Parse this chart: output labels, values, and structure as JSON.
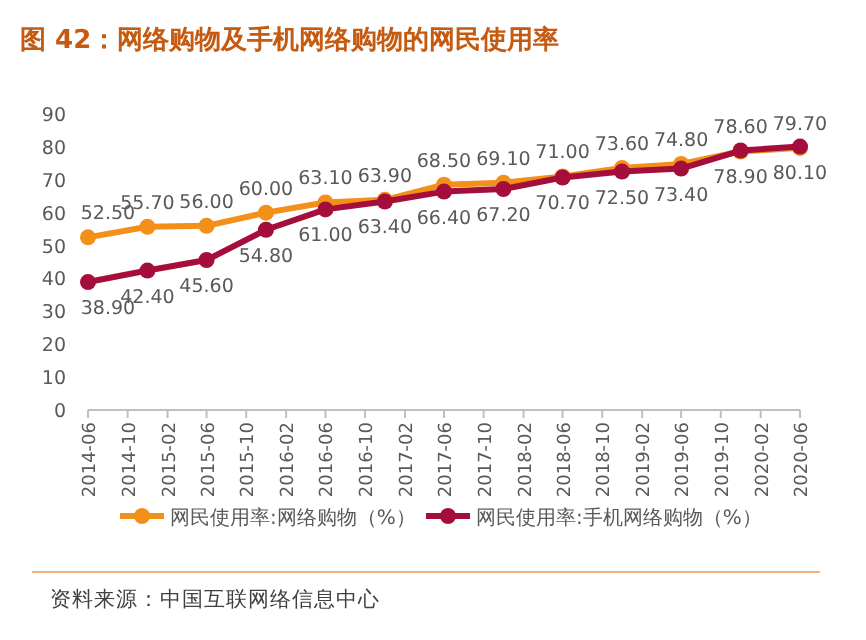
{
  "chart_data": {
    "type": "line",
    "title": "图 42：网络购物及手机网络购物的网民使用率",
    "x": [
      "2014-06",
      "2014-12",
      "2015-06",
      "2015-12",
      "2016-06",
      "2016-12",
      "2017-06",
      "2017-12",
      "2018-06",
      "2018-12",
      "2019-06",
      "2019-12",
      "2020-06"
    ],
    "series": [
      {
        "name": "网民使用率:网络购物（%）",
        "color": "#f39019",
        "values": [
          52.5,
          55.7,
          56.0,
          60.0,
          63.1,
          63.9,
          68.5,
          69.1,
          71.0,
          73.6,
          74.8,
          78.6,
          79.7
        ],
        "value_labels": [
          "52.50",
          "55.70",
          "56.00",
          "60.00",
          "63.10",
          "63.90",
          "68.50",
          "69.10",
          "71.00",
          "73.60",
          "74.80",
          "78.60",
          "79.70"
        ]
      },
      {
        "name": "网民使用率:手机网络购物（%）",
        "color": "#a50d3a",
        "values": [
          38.9,
          42.4,
          45.6,
          54.8,
          61.0,
          63.4,
          66.4,
          67.2,
          70.7,
          72.5,
          73.4,
          78.9,
          80.1
        ],
        "value_labels": [
          "38.90",
          "42.40",
          "45.60",
          "54.80",
          "61.00",
          "63.40",
          "66.40",
          "67.20",
          "70.70",
          "72.50",
          "73.40",
          "78.90",
          "80.10"
        ]
      }
    ],
    "xlim": [
      "2014-06",
      "2020-06"
    ],
    "xticks": [
      "2014-06",
      "2014-10",
      "2015-02",
      "2015-06",
      "2015-10",
      "2016-02",
      "2016-06",
      "2016-10",
      "2017-02",
      "2017-06",
      "2017-10",
      "2018-02",
      "2018-06",
      "2018-10",
      "2019-02",
      "2019-06",
      "2019-10",
      "2020-02",
      "2020-06"
    ],
    "ylim": [
      0,
      90
    ],
    "yticks": [
      0,
      10,
      20,
      30,
      40,
      50,
      60,
      70,
      80,
      90
    ],
    "grid": false,
    "legend": "bottom",
    "marker": "circle",
    "line_style": "solid",
    "annotations": [
      "资料来源：中国互联网络信息中心"
    ]
  }
}
